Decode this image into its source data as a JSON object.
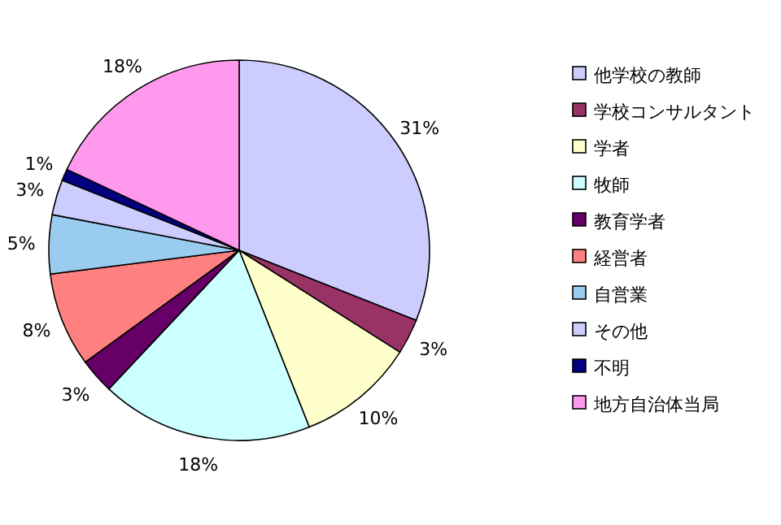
{
  "chart_data": {
    "type": "pie",
    "categories": [
      "他学校の教師",
      "学校コンサルタント",
      "学者",
      "牧師",
      "教育学者",
      "経営者",
      "自営業",
      "その他",
      "不明",
      "地方自治体当局"
    ],
    "values": [
      31,
      3,
      10,
      18,
      3,
      8,
      5,
      3,
      1,
      18
    ],
    "value_labels": [
      "31%",
      "3%",
      "10%",
      "18%",
      "3%",
      "8%",
      "5%",
      "3%",
      "1%",
      "18%"
    ],
    "colors": [
      "#ccccff",
      "#993366",
      "#ffffcc",
      "#ccffff",
      "#660066",
      "#ff8080",
      "#99ccee",
      "#ccccff",
      "#000080",
      "#ff99ee"
    ],
    "legend": "right"
  }
}
